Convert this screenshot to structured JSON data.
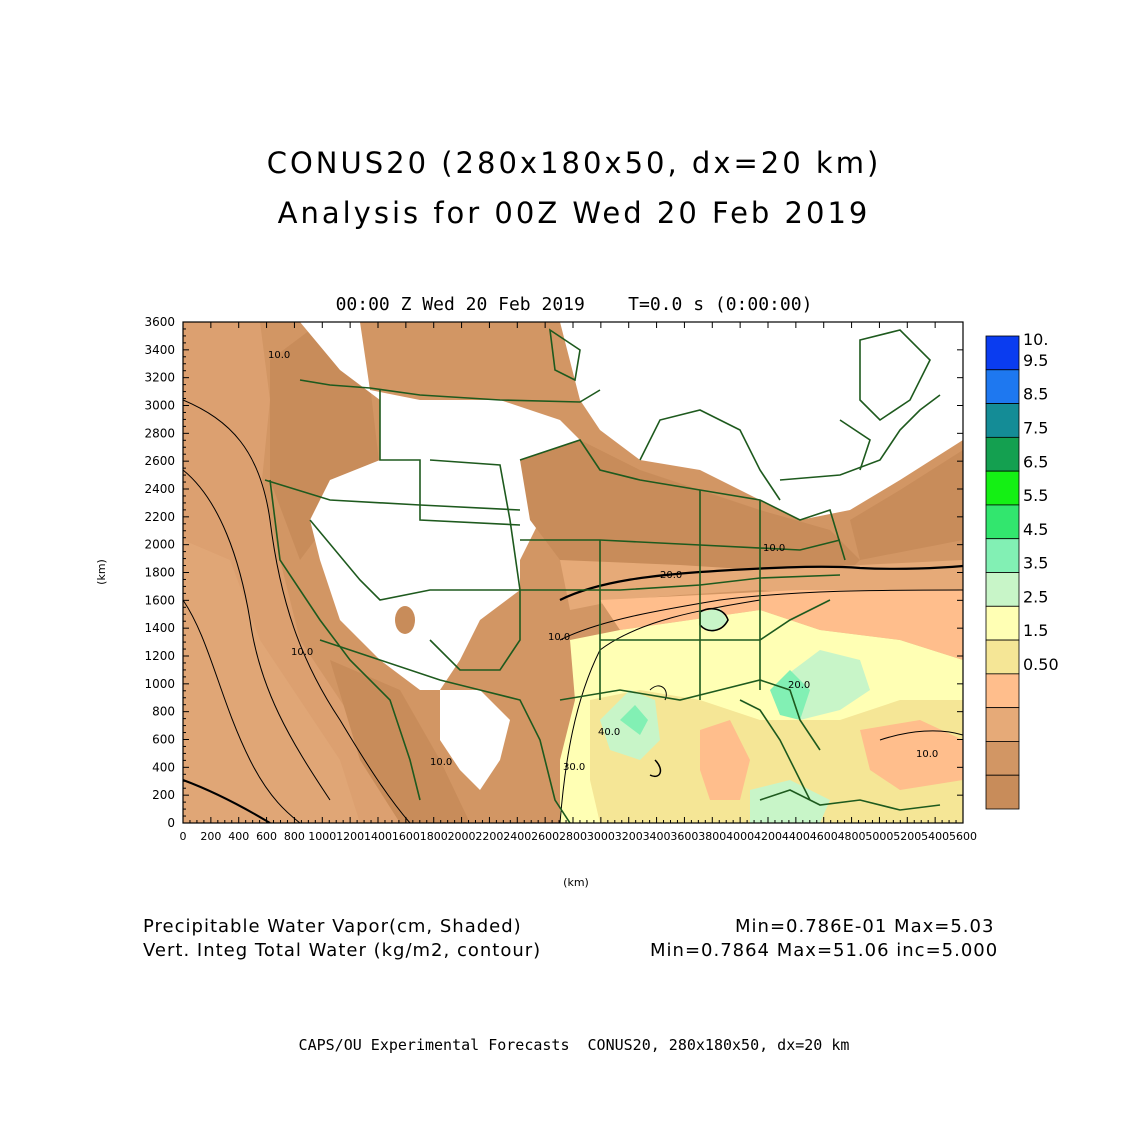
{
  "header": {
    "title_line1": "CONUS20 (280x180x50, dx=20 km)",
    "title_line2": "Analysis for 00Z Wed 20 Feb 2019",
    "subtitle": "00:00 Z Wed 20 Feb 2019    T=0.0 s (0:00:00)"
  },
  "axes": {
    "x_label": "(km)",
    "y_label": "(km)",
    "x_ticks": [
      "0",
      "200",
      "400",
      "600",
      "800",
      "1000",
      "1200",
      "1400",
      "1600",
      "1800",
      "2000",
      "2200",
      "2400",
      "2600",
      "2800",
      "3000",
      "3200",
      "3400",
      "3600",
      "3800",
      "4000",
      "4200",
      "4400",
      "4600",
      "4800",
      "5000",
      "5200",
      "5400",
      "5600"
    ],
    "y_ticks": [
      "0",
      "200",
      "400",
      "600",
      "800",
      "1000",
      "1200",
      "1400",
      "1600",
      "1800",
      "2000",
      "2200",
      "2400",
      "2600",
      "2800",
      "3000",
      "3200",
      "3400",
      "3600"
    ],
    "x_range": [
      0,
      5600
    ],
    "y_range": [
      0,
      3600
    ]
  },
  "colorbar": {
    "labels": [
      "10.",
      "9.5",
      "8.5",
      "7.5",
      "6.5",
      "5.5",
      "4.5",
      "3.5",
      "2.5",
      "1.5",
      "0.50"
    ],
    "colors": [
      "#0a3cf0",
      "#1e78f0",
      "#148c96",
      "#14a050",
      "#14f014",
      "#32e66e",
      "#82f0b4",
      "#c8f5c8",
      "#ffffb4",
      "#f5e696",
      "#ffbe8c",
      "#e6aa78",
      "#d29664",
      "#c88c5a"
    ]
  },
  "contour_labels": [
    "10.0",
    "10.0",
    "10.0",
    "10.0",
    "10.0",
    "20.0",
    "40.0",
    "30.0",
    "20.0",
    "10.0"
  ],
  "legend": {
    "field1_name": "Precipitable Water Vapor(cm, Shaded)",
    "field1_stats": "Min=0.786E-01 Max=5.03",
    "field2_name": "Vert. Integ Total Water (kg/m2, contour)",
    "field2_stats": "Min=0.7864 Max=51.06 inc=5.000"
  },
  "footer": "CAPS/OU Experimental Forecasts  CONUS20, 280x180x50, dx=20 km"
}
